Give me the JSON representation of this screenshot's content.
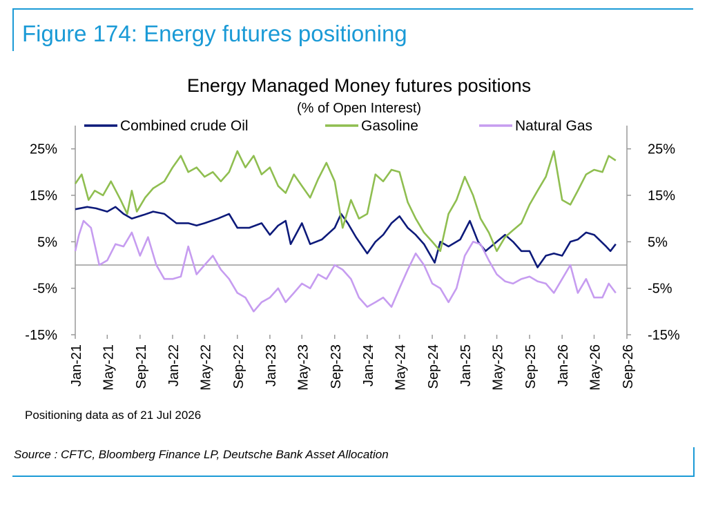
{
  "figure_title": "Figure 174: Energy futures positioning",
  "footnote": "Positioning data as of 21 Jul 2026",
  "source": "Source : CFTC, Bloomberg Finance LP, Deutsche Bank Asset Allocation",
  "chart_data": {
    "type": "line",
    "title": "Energy Managed Money futures positions",
    "subtitle": "(% of Open Interest)",
    "x_range": [
      "2021-01-01",
      "2026-09-01"
    ],
    "x_ticks": [
      "Jan-21",
      "May-21",
      "Sep-21",
      "Jan-22",
      "May-22",
      "Sep-22",
      "Jan-23",
      "May-23",
      "Sep-23",
      "Jan-24",
      "May-24",
      "Sep-24",
      "Jan-25",
      "May-25",
      "Sep-25",
      "Jan-26",
      "May-26",
      "Sep-26"
    ],
    "y_ticks": [
      "25%",
      "15%",
      "5%",
      "-5%",
      "-15%"
    ],
    "ylim": [
      -15,
      30
    ],
    "legend_position": "top",
    "grid": false,
    "series": [
      {
        "name": "Combined crude Oil",
        "color": "#0d1a7a",
        "points": [
          [
            "2021-01-01",
            12
          ],
          [
            "2021-02-15",
            12.5
          ],
          [
            "2021-03-20",
            12.2
          ],
          [
            "2021-05-01",
            11.5
          ],
          [
            "2021-06-01",
            12.5
          ],
          [
            "2021-07-01",
            11
          ],
          [
            "2021-08-01",
            10
          ],
          [
            "2021-09-15",
            10.8
          ],
          [
            "2021-10-20",
            11.5
          ],
          [
            "2021-12-01",
            11
          ],
          [
            "2022-01-15",
            9
          ],
          [
            "2022-03-01",
            9
          ],
          [
            "2022-04-01",
            8.5
          ],
          [
            "2022-05-01",
            9
          ],
          [
            "2022-06-20",
            10
          ],
          [
            "2022-08-01",
            11
          ],
          [
            "2022-09-01",
            8
          ],
          [
            "2022-10-15",
            8
          ],
          [
            "2022-12-01",
            9
          ],
          [
            "2023-01-01",
            6.5
          ],
          [
            "2023-02-01",
            8.5
          ],
          [
            "2023-03-01",
            9.5
          ],
          [
            "2023-03-20",
            4.5
          ],
          [
            "2023-05-01",
            9
          ],
          [
            "2023-06-01",
            4.5
          ],
          [
            "2023-07-15",
            5.5
          ],
          [
            "2023-09-01",
            8
          ],
          [
            "2023-09-25",
            11
          ],
          [
            "2023-10-20",
            9
          ],
          [
            "2023-11-20",
            6
          ],
          [
            "2024-01-01",
            2.5
          ],
          [
            "2024-02-01",
            5
          ],
          [
            "2024-03-01",
            6.5
          ],
          [
            "2024-04-01",
            9
          ],
          [
            "2024-05-01",
            10.5
          ],
          [
            "2024-06-01",
            8
          ],
          [
            "2024-07-01",
            6.5
          ],
          [
            "2024-08-01",
            4.5
          ],
          [
            "2024-09-10",
            0.5
          ],
          [
            "2024-10-01",
            5
          ],
          [
            "2024-11-01",
            4
          ],
          [
            "2024-12-15",
            5.5
          ],
          [
            "2025-01-20",
            9.5
          ],
          [
            "2025-02-20",
            5
          ],
          [
            "2025-03-20",
            3
          ],
          [
            "2025-05-01",
            5
          ],
          [
            "2025-06-01",
            6.5
          ],
          [
            "2025-07-01",
            5
          ],
          [
            "2025-08-01",
            3
          ],
          [
            "2025-09-01",
            3
          ],
          [
            "2025-10-01",
            -0.5
          ],
          [
            "2025-11-01",
            2
          ],
          [
            "2025-12-01",
            2.5
          ],
          [
            "2026-01-01",
            2
          ],
          [
            "2026-02-01",
            5
          ],
          [
            "2026-03-01",
            5.5
          ],
          [
            "2026-04-01",
            7
          ],
          [
            "2026-05-01",
            6.5
          ],
          [
            "2026-06-15",
            4
          ],
          [
            "2026-07-01",
            3
          ],
          [
            "2026-07-21",
            4.5
          ]
        ]
      },
      {
        "name": "Gasoline",
        "color": "#8fbe50",
        "points": [
          [
            "2021-01-01",
            17.5
          ],
          [
            "2021-01-25",
            19.5
          ],
          [
            "2021-02-20",
            14
          ],
          [
            "2021-03-15",
            16
          ],
          [
            "2021-04-15",
            15
          ],
          [
            "2021-05-15",
            18
          ],
          [
            "2021-06-20",
            14
          ],
          [
            "2021-07-15",
            11
          ],
          [
            "2021-08-01",
            16
          ],
          [
            "2021-08-20",
            11.5
          ],
          [
            "2021-09-20",
            14.5
          ],
          [
            "2021-10-20",
            16.5
          ],
          [
            "2021-12-01",
            18
          ],
          [
            "2022-01-01",
            21
          ],
          [
            "2022-02-01",
            23.5
          ],
          [
            "2022-03-01",
            20
          ],
          [
            "2022-04-01",
            21
          ],
          [
            "2022-05-01",
            19
          ],
          [
            "2022-06-01",
            20
          ],
          [
            "2022-07-01",
            18
          ],
          [
            "2022-08-01",
            20
          ],
          [
            "2022-09-01",
            24.5
          ],
          [
            "2022-10-01",
            21
          ],
          [
            "2022-11-01",
            23.5
          ],
          [
            "2022-12-01",
            19.5
          ],
          [
            "2023-01-01",
            21
          ],
          [
            "2023-02-01",
            17
          ],
          [
            "2023-03-01",
            15.5
          ],
          [
            "2023-04-01",
            19.5
          ],
          [
            "2023-05-01",
            17
          ],
          [
            "2023-06-01",
            14.5
          ],
          [
            "2023-07-01",
            18.5
          ],
          [
            "2023-08-01",
            22
          ],
          [
            "2023-09-01",
            18
          ],
          [
            "2023-10-01",
            8
          ],
          [
            "2023-11-01",
            14
          ],
          [
            "2023-12-01",
            10
          ],
          [
            "2024-01-01",
            11
          ],
          [
            "2024-02-01",
            19.5
          ],
          [
            "2024-03-01",
            18
          ],
          [
            "2024-04-01",
            20.5
          ],
          [
            "2024-05-01",
            20
          ],
          [
            "2024-06-01",
            13.5
          ],
          [
            "2024-07-01",
            10
          ],
          [
            "2024-08-01",
            7
          ],
          [
            "2024-09-01",
            5
          ],
          [
            "2024-10-01",
            3
          ],
          [
            "2024-11-01",
            11
          ],
          [
            "2024-12-01",
            14
          ],
          [
            "2025-01-01",
            19
          ],
          [
            "2025-02-01",
            15
          ],
          [
            "2025-03-01",
            10
          ],
          [
            "2025-04-01",
            7
          ],
          [
            "2025-05-01",
            3
          ],
          [
            "2025-06-01",
            6
          ],
          [
            "2025-07-01",
            7.5
          ],
          [
            "2025-08-01",
            9
          ],
          [
            "2025-09-01",
            13
          ],
          [
            "2025-10-01",
            16
          ],
          [
            "2025-11-01",
            19
          ],
          [
            "2025-12-01",
            24.5
          ],
          [
            "2026-01-01",
            14
          ],
          [
            "2026-02-01",
            13
          ],
          [
            "2026-03-01",
            16
          ],
          [
            "2026-04-01",
            19.5
          ],
          [
            "2026-05-01",
            20.5
          ],
          [
            "2026-06-01",
            20
          ],
          [
            "2026-06-25",
            23.5
          ],
          [
            "2026-07-21",
            22.5
          ]
        ]
      },
      {
        "name": "Natural Gas",
        "color": "#c69cf0",
        "points": [
          [
            "2021-01-01",
            3
          ],
          [
            "2021-01-15",
            6.5
          ],
          [
            "2021-02-01",
            9.5
          ],
          [
            "2021-03-01",
            8
          ],
          [
            "2021-04-01",
            0
          ],
          [
            "2021-05-01",
            1
          ],
          [
            "2021-06-01",
            4.5
          ],
          [
            "2021-07-01",
            4
          ],
          [
            "2021-08-01",
            7
          ],
          [
            "2021-09-01",
            2
          ],
          [
            "2021-10-01",
            6
          ],
          [
            "2021-11-01",
            0
          ],
          [
            "2021-12-01",
            -3
          ],
          [
            "2022-01-01",
            -3
          ],
          [
            "2022-02-01",
            -2.5
          ],
          [
            "2022-03-01",
            4
          ],
          [
            "2022-04-01",
            -2
          ],
          [
            "2022-05-01",
            0
          ],
          [
            "2022-06-01",
            2
          ],
          [
            "2022-07-01",
            -1
          ],
          [
            "2022-08-01",
            -3
          ],
          [
            "2022-09-01",
            -6
          ],
          [
            "2022-10-01",
            -7
          ],
          [
            "2022-11-01",
            -10
          ],
          [
            "2022-12-01",
            -8
          ],
          [
            "2023-01-01",
            -7
          ],
          [
            "2023-02-01",
            -5
          ],
          [
            "2023-03-01",
            -8
          ],
          [
            "2023-04-01",
            -6
          ],
          [
            "2023-05-01",
            -4
          ],
          [
            "2023-06-01",
            -5
          ],
          [
            "2023-07-01",
            -2
          ],
          [
            "2023-08-01",
            -3
          ],
          [
            "2023-09-01",
            0
          ],
          [
            "2023-10-01",
            -1
          ],
          [
            "2023-11-01",
            -3
          ],
          [
            "2023-12-01",
            -7
          ],
          [
            "2024-01-01",
            -9
          ],
          [
            "2024-02-01",
            -8
          ],
          [
            "2024-03-01",
            -7
          ],
          [
            "2024-04-01",
            -9
          ],
          [
            "2024-05-01",
            -5
          ],
          [
            "2024-06-01",
            -1
          ],
          [
            "2024-07-01",
            2.5
          ],
          [
            "2024-08-01",
            0
          ],
          [
            "2024-09-01",
            -4
          ],
          [
            "2024-10-01",
            -5
          ],
          [
            "2024-11-01",
            -8
          ],
          [
            "2024-12-01",
            -5
          ],
          [
            "2025-01-01",
            2
          ],
          [
            "2025-02-01",
            5
          ],
          [
            "2025-03-01",
            4.5
          ],
          [
            "2025-04-01",
            1
          ],
          [
            "2025-05-01",
            -2
          ],
          [
            "2025-06-01",
            -3.5
          ],
          [
            "2025-07-01",
            -4
          ],
          [
            "2025-08-01",
            -3
          ],
          [
            "2025-09-01",
            -2.5
          ],
          [
            "2025-10-01",
            -3.5
          ],
          [
            "2025-11-01",
            -4
          ],
          [
            "2025-12-01",
            -6
          ],
          [
            "2026-01-01",
            -3
          ],
          [
            "2026-02-01",
            0
          ],
          [
            "2026-03-01",
            -6
          ],
          [
            "2026-04-01",
            -3
          ],
          [
            "2026-05-01",
            -7
          ],
          [
            "2026-06-01",
            -7
          ],
          [
            "2026-06-25",
            -4
          ],
          [
            "2026-07-21",
            -6
          ]
        ]
      }
    ]
  }
}
